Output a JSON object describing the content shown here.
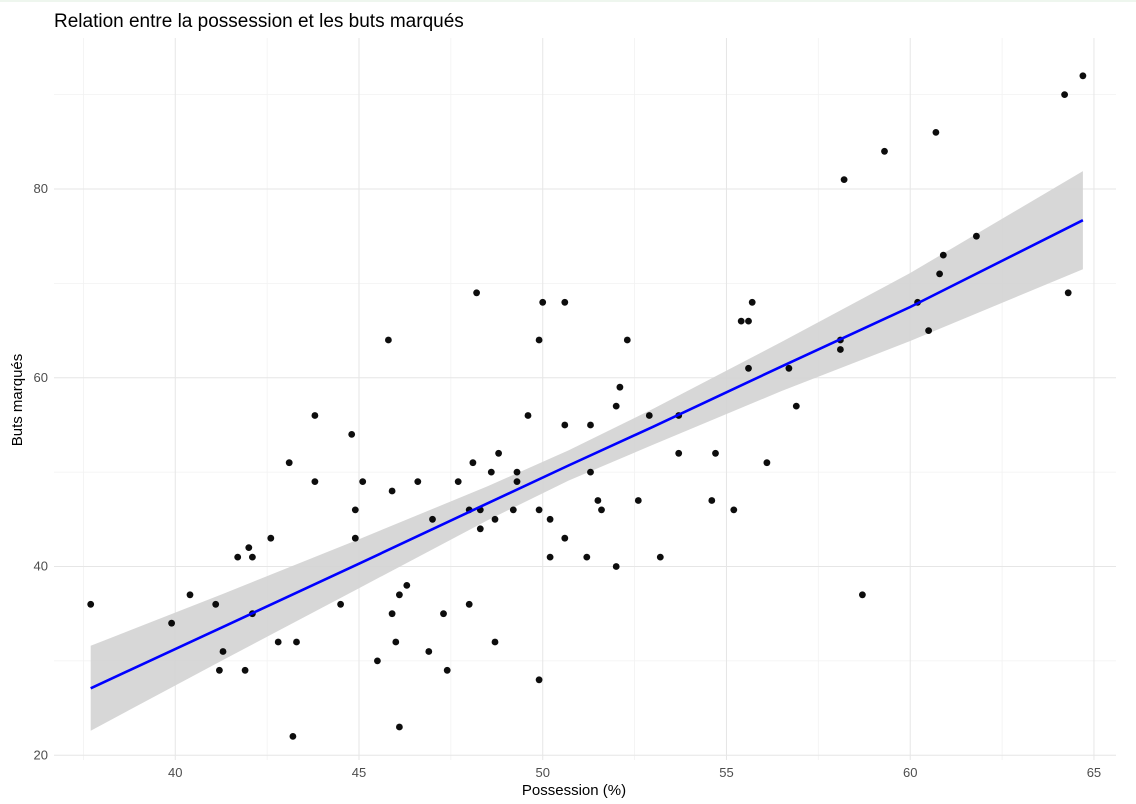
{
  "chart_data": {
    "type": "scatter",
    "title": "Relation entre la possession et les buts marqués",
    "xlabel": "Possession (%)",
    "ylabel": "Buts marqués",
    "xlim": [
      36.7,
      65.6
    ],
    "ylim": [
      19.5,
      96.0
    ],
    "x_ticks": [
      40,
      45,
      50,
      55,
      60,
      65
    ],
    "y_ticks": [
      20,
      40,
      60,
      80
    ],
    "grid": true,
    "colors": {
      "points": "#000000",
      "fit_line": "#0000ff",
      "confidence_band": "#d3d3d3",
      "grid_major": "#e6e6e6",
      "grid_minor": "#f2f2f2"
    },
    "points": [
      {
        "x": 37.7,
        "y": 36
      },
      {
        "x": 39.9,
        "y": 34
      },
      {
        "x": 40.4,
        "y": 37
      },
      {
        "x": 41.1,
        "y": 36
      },
      {
        "x": 41.2,
        "y": 29
      },
      {
        "x": 41.3,
        "y": 31
      },
      {
        "x": 41.7,
        "y": 41
      },
      {
        "x": 41.9,
        "y": 29
      },
      {
        "x": 42.0,
        "y": 42
      },
      {
        "x": 42.1,
        "y": 41
      },
      {
        "x": 42.1,
        "y": 35
      },
      {
        "x": 42.6,
        "y": 43
      },
      {
        "x": 42.8,
        "y": 32
      },
      {
        "x": 43.1,
        "y": 51
      },
      {
        "x": 43.2,
        "y": 22
      },
      {
        "x": 43.3,
        "y": 32
      },
      {
        "x": 43.8,
        "y": 56
      },
      {
        "x": 43.8,
        "y": 49
      },
      {
        "x": 44.5,
        "y": 36
      },
      {
        "x": 44.8,
        "y": 54
      },
      {
        "x": 44.9,
        "y": 46
      },
      {
        "x": 44.9,
        "y": 43
      },
      {
        "x": 45.1,
        "y": 49
      },
      {
        "x": 45.5,
        "y": 30
      },
      {
        "x": 45.8,
        "y": 64
      },
      {
        "x": 45.9,
        "y": 48
      },
      {
        "x": 45.9,
        "y": 35
      },
      {
        "x": 46.0,
        "y": 32
      },
      {
        "x": 46.1,
        "y": 37
      },
      {
        "x": 46.1,
        "y": 23
      },
      {
        "x": 46.3,
        "y": 38
      },
      {
        "x": 46.6,
        "y": 49
      },
      {
        "x": 46.9,
        "y": 31
      },
      {
        "x": 47.0,
        "y": 45
      },
      {
        "x": 47.3,
        "y": 35
      },
      {
        "x": 47.4,
        "y": 29
      },
      {
        "x": 47.7,
        "y": 49
      },
      {
        "x": 48.0,
        "y": 46
      },
      {
        "x": 48.0,
        "y": 36
      },
      {
        "x": 48.1,
        "y": 51
      },
      {
        "x": 48.2,
        "y": 69
      },
      {
        "x": 48.3,
        "y": 46
      },
      {
        "x": 48.3,
        "y": 44
      },
      {
        "x": 48.6,
        "y": 50
      },
      {
        "x": 48.7,
        "y": 45
      },
      {
        "x": 48.7,
        "y": 32
      },
      {
        "x": 48.8,
        "y": 52
      },
      {
        "x": 49.2,
        "y": 46
      },
      {
        "x": 49.3,
        "y": 50
      },
      {
        "x": 49.3,
        "y": 49
      },
      {
        "x": 49.6,
        "y": 56
      },
      {
        "x": 49.9,
        "y": 64
      },
      {
        "x": 49.9,
        "y": 46
      },
      {
        "x": 49.9,
        "y": 28
      },
      {
        "x": 50.0,
        "y": 68
      },
      {
        "x": 50.2,
        "y": 45
      },
      {
        "x": 50.2,
        "y": 41
      },
      {
        "x": 50.6,
        "y": 68
      },
      {
        "x": 50.6,
        "y": 55
      },
      {
        "x": 50.6,
        "y": 43
      },
      {
        "x": 51.2,
        "y": 41
      },
      {
        "x": 51.3,
        "y": 55
      },
      {
        "x": 51.3,
        "y": 50
      },
      {
        "x": 51.5,
        "y": 47
      },
      {
        "x": 51.6,
        "y": 46
      },
      {
        "x": 52.0,
        "y": 57
      },
      {
        "x": 52.0,
        "y": 40
      },
      {
        "x": 52.1,
        "y": 59
      },
      {
        "x": 52.3,
        "y": 64
      },
      {
        "x": 52.6,
        "y": 47
      },
      {
        "x": 52.9,
        "y": 56
      },
      {
        "x": 53.2,
        "y": 41
      },
      {
        "x": 53.7,
        "y": 56
      },
      {
        "x": 53.7,
        "y": 52
      },
      {
        "x": 54.6,
        "y": 47
      },
      {
        "x": 54.7,
        "y": 52
      },
      {
        "x": 55.2,
        "y": 46
      },
      {
        "x": 55.4,
        "y": 66
      },
      {
        "x": 55.6,
        "y": 66
      },
      {
        "x": 55.6,
        "y": 61
      },
      {
        "x": 55.7,
        "y": 68
      },
      {
        "x": 56.1,
        "y": 51
      },
      {
        "x": 56.7,
        "y": 61
      },
      {
        "x": 56.9,
        "y": 57
      },
      {
        "x": 58.1,
        "y": 64
      },
      {
        "x": 58.1,
        "y": 63
      },
      {
        "x": 58.2,
        "y": 81
      },
      {
        "x": 58.7,
        "y": 37
      },
      {
        "x": 59.3,
        "y": 84
      },
      {
        "x": 60.2,
        "y": 68
      },
      {
        "x": 60.5,
        "y": 65
      },
      {
        "x": 60.7,
        "y": 86
      },
      {
        "x": 60.8,
        "y": 71
      },
      {
        "x": 60.9,
        "y": 73
      },
      {
        "x": 61.8,
        "y": 75
      },
      {
        "x": 64.2,
        "y": 90
      },
      {
        "x": 64.3,
        "y": 69
      },
      {
        "x": 64.7,
        "y": 92
      }
    ],
    "fit": {
      "x": [
        37.7,
        41.3,
        45.0,
        48.5,
        50.7,
        53.0,
        56.5,
        60.0,
        64.7
      ],
      "y": [
        27.1,
        33.6,
        40.3,
        46.7,
        50.7,
        54.8,
        61.2,
        67.5,
        76.7
      ],
      "lower": [
        22.6,
        30.1,
        37.7,
        44.9,
        49.1,
        52.9,
        58.6,
        63.9,
        71.5
      ],
      "upper": [
        31.6,
        37.1,
        42.9,
        48.5,
        52.3,
        56.7,
        63.8,
        71.1,
        81.9
      ]
    }
  }
}
